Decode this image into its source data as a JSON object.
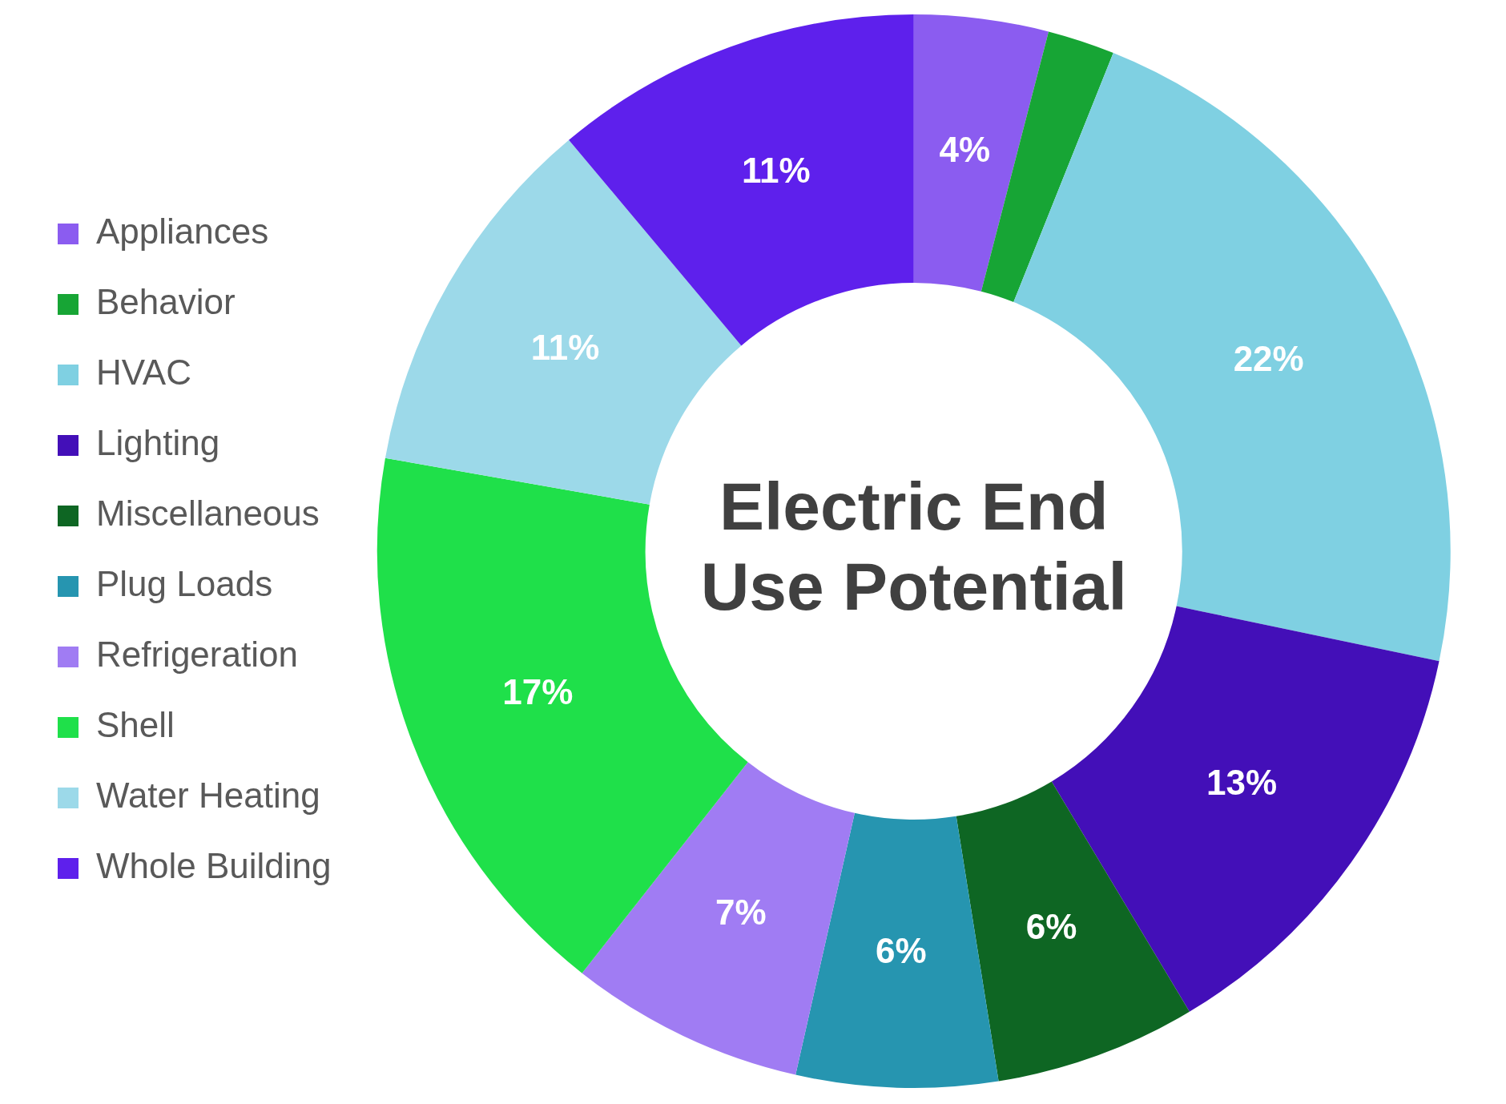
{
  "chart_data": {
    "type": "donut",
    "title": "Electric End Use Potential",
    "categories": [
      "Appliances",
      "Behavior",
      "HVAC",
      "Lighting",
      "Miscellaneous",
      "Plug Loads",
      "Refrigeration",
      "Shell",
      "Water Heating",
      "Whole Building"
    ],
    "values": [
      4,
      2,
      22,
      13,
      6,
      6,
      7,
      17,
      11,
      11
    ],
    "value_labels": [
      "4%",
      null,
      "22%",
      "13%",
      "6%",
      "6%",
      "7%",
      "17%",
      "11%",
      "11%"
    ],
    "colors": [
      "#8b5cf0",
      "#17a535",
      "#7fd0e2",
      "#430fb8",
      "#0e6623",
      "#2695b0",
      "#a07cf3",
      "#1fe04a",
      "#9cd9e9",
      "#5e20ec"
    ],
    "legend": "left"
  }
}
